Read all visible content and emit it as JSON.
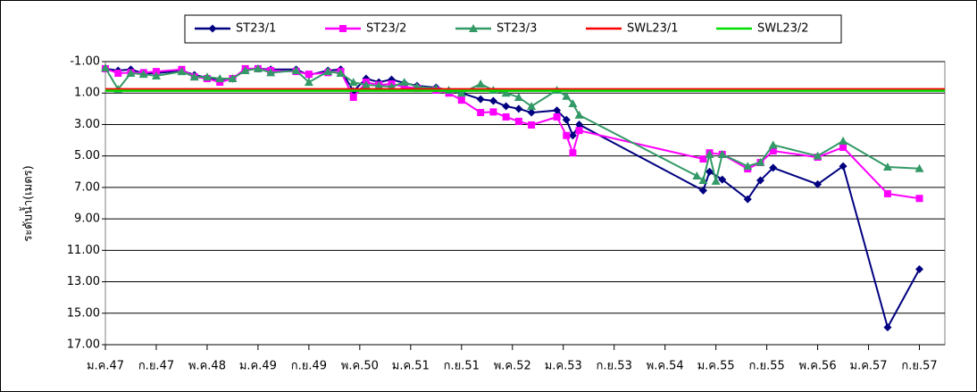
{
  "chart_data": {
    "type": "line",
    "y_label": "ระดับน้ำ(เมตร)",
    "xlim": [
      0,
      132
    ],
    "xticks": [
      {
        "value": 0,
        "label": "ม.ค.47"
      },
      {
        "value": 8,
        "label": "ก.ย.47"
      },
      {
        "value": 16,
        "label": "พ.ค.48"
      },
      {
        "value": 24,
        "label": "ม.ค.49"
      },
      {
        "value": 32,
        "label": "ก.ย.49"
      },
      {
        "value": 40,
        "label": "พ.ค.50"
      },
      {
        "value": 48,
        "label": "ม.ค.51"
      },
      {
        "value": 56,
        "label": "ก.ย.51"
      },
      {
        "value": 64,
        "label": "พ.ค.52"
      },
      {
        "value": 72,
        "label": "ม.ค.53"
      },
      {
        "value": 80,
        "label": "ก.ย.53"
      },
      {
        "value": 88,
        "label": "พ.ค.54"
      },
      {
        "value": 96,
        "label": "ม.ค.55"
      },
      {
        "value": 104,
        "label": "ก.ย.55"
      },
      {
        "value": 112,
        "label": "พ.ค.56"
      },
      {
        "value": 120,
        "label": "ม.ค.57"
      },
      {
        "value": 128,
        "label": "ก.ย.57"
      }
    ],
    "ylim": [
      -1,
      17
    ],
    "y_reversed": true,
    "yticks": [
      {
        "value": -1,
        "label": "-1.00"
      },
      {
        "value": 1,
        "label": "1.00"
      },
      {
        "value": 3,
        "label": "3.00"
      },
      {
        "value": 5,
        "label": "5.00"
      },
      {
        "value": 7,
        "label": "7.00"
      },
      {
        "value": 9,
        "label": "9.00"
      },
      {
        "value": 11,
        "label": "11.00"
      },
      {
        "value": 13,
        "label": "13.00"
      },
      {
        "value": 15,
        "label": "15.00"
      },
      {
        "value": 17,
        "label": "17.00"
      }
    ],
    "grid": true,
    "legend": "top",
    "series": [
      {
        "name": "ST23/1",
        "color": "#000080",
        "marker": "diamond",
        "x": [
          0,
          2,
          4,
          6,
          8,
          12,
          14,
          16,
          18,
          20,
          22,
          24,
          26,
          30,
          32,
          35,
          37,
          39,
          41,
          43,
          45,
          47,
          49,
          52,
          56,
          59,
          61,
          63,
          65,
          67,
          71,
          72.5,
          73.5,
          74.5,
          94,
          95,
          97,
          101,
          103,
          105,
          112,
          116,
          123,
          128
        ],
        "values": [
          -0.55,
          -0.43,
          -0.5,
          -0.26,
          -0.26,
          -0.43,
          -0.15,
          0.02,
          0.14,
          0.08,
          -0.5,
          -0.55,
          -0.5,
          -0.5,
          -0.15,
          -0.43,
          -0.5,
          0.88,
          0.08,
          0.31,
          0.14,
          0.36,
          0.53,
          0.65,
          1.0,
          1.39,
          1.5,
          1.84,
          2.0,
          2.24,
          2.1,
          2.7,
          3.7,
          3.0,
          7.2,
          6.0,
          6.5,
          7.75,
          6.55,
          5.75,
          6.8,
          5.65,
          15.9,
          12.2
        ]
      },
      {
        "name": "ST23/2",
        "color": "#ff00ff",
        "marker": "square",
        "x": [
          0,
          2,
          4,
          6,
          8,
          12,
          14,
          16,
          18,
          20,
          22,
          24,
          26,
          30,
          32,
          35,
          37,
          39,
          41,
          43,
          45,
          47,
          49,
          52,
          54,
          56,
          59,
          61,
          63,
          65,
          67,
          71,
          72.5,
          73.5,
          74.5,
          94,
          95,
          97,
          101,
          103,
          105,
          112,
          116,
          123,
          128
        ],
        "values": [
          -0.55,
          -0.26,
          -0.3,
          -0.3,
          -0.37,
          -0.5,
          -0.03,
          0.08,
          0.31,
          0.08,
          -0.55,
          -0.55,
          -0.43,
          -0.37,
          -0.2,
          -0.3,
          -0.37,
          1.27,
          0.31,
          0.48,
          0.42,
          0.6,
          0.7,
          0.82,
          1.0,
          1.45,
          2.24,
          2.2,
          2.52,
          2.8,
          3.03,
          2.52,
          3.7,
          4.8,
          3.38,
          5.19,
          4.8,
          4.9,
          5.82,
          5.42,
          4.68,
          5.08,
          4.45,
          7.4,
          7.7
        ]
      },
      {
        "name": "ST23/3",
        "color": "#339966",
        "marker": "triangle",
        "x": [
          0,
          2,
          4,
          6,
          8,
          12,
          14,
          16,
          18,
          20,
          22,
          24,
          26,
          30,
          32,
          35,
          37,
          39,
          41,
          43,
          45,
          47,
          49,
          52,
          54,
          56,
          59,
          61,
          63,
          65,
          67,
          71,
          72.5,
          73.5,
          74.5,
          93,
          94,
          95,
          96,
          97,
          101,
          103,
          105,
          112,
          116,
          123,
          128
        ],
        "values": [
          -0.6,
          0.76,
          -0.26,
          -0.2,
          -0.09,
          -0.37,
          -0.03,
          -0.03,
          0.08,
          0.08,
          -0.43,
          -0.55,
          -0.3,
          -0.43,
          0.31,
          -0.37,
          -0.26,
          0.31,
          0.48,
          0.53,
          0.6,
          0.31,
          0.6,
          0.7,
          0.82,
          1.0,
          0.42,
          0.82,
          1.0,
          1.27,
          1.84,
          0.82,
          1.2,
          1.67,
          2.4,
          6.27,
          6.55,
          4.9,
          6.6,
          4.9,
          5.65,
          5.4,
          4.3,
          5.0,
          4.05,
          5.7,
          5.8
        ]
      },
      {
        "name": "SWL23/1",
        "color": "#ff0000",
        "marker": "none",
        "x": [
          0,
          132
        ],
        "values": [
          0.75,
          0.75
        ]
      },
      {
        "name": "SWL23/2",
        "color": "#00dd00",
        "marker": "none",
        "x": [
          0,
          132
        ],
        "values": [
          0.85,
          0.85
        ]
      }
    ]
  }
}
